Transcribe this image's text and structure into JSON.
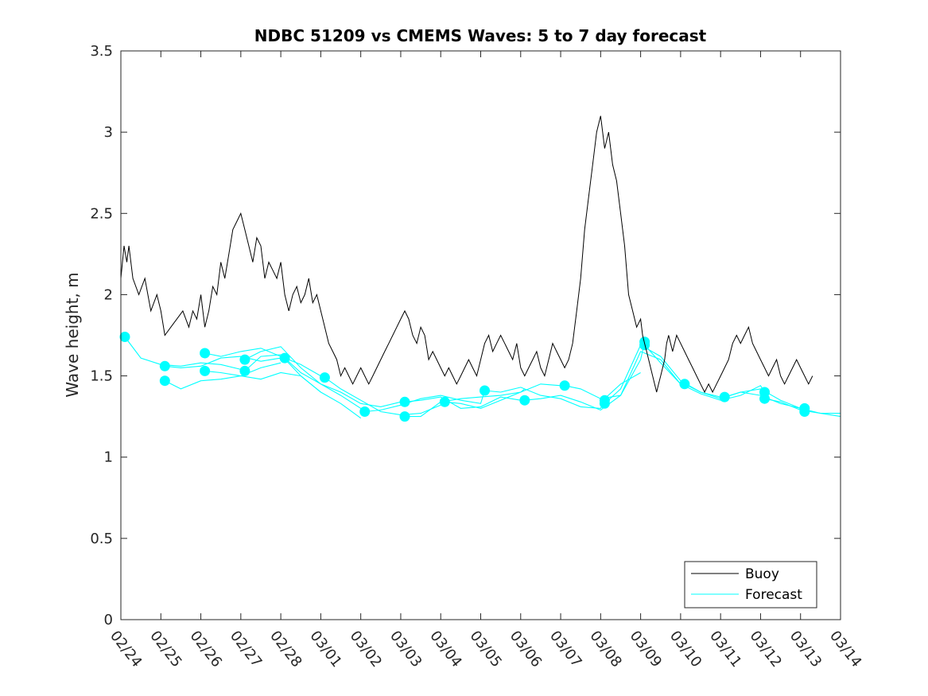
{
  "chart_data": {
    "type": "line",
    "title": "NDBC 51209 vs CMEMS Waves: 5 to 7 day forecast",
    "xlabel": "",
    "ylabel": "Wave height, m",
    "xlim": [
      0,
      18
    ],
    "ylim": [
      0,
      3.5
    ],
    "x_ticks": [
      "02/24",
      "02/25",
      "02/26",
      "02/27",
      "02/28",
      "03/01",
      "03/02",
      "03/03",
      "03/04",
      "03/05",
      "03/06",
      "03/07",
      "03/08",
      "03/09",
      "03/10",
      "03/11",
      "03/12",
      "03/13",
      "03/14"
    ],
    "y_ticks": [
      0,
      0.5,
      1,
      1.5,
      2,
      2.5,
      3,
      3.5
    ],
    "y_tick_labels": [
      "0",
      "0.5",
      "1",
      "1.5",
      "2",
      "2.5",
      "3",
      "3.5"
    ],
    "legend": {
      "position": "bottom-right",
      "entries": [
        "Buoy",
        "Forecast"
      ]
    },
    "colors": {
      "buoy": "#000000",
      "forecast": "#00ffff"
    },
    "series": [
      {
        "name": "Buoy",
        "x": [
          0.0,
          0.08,
          0.15,
          0.2,
          0.3,
          0.45,
          0.6,
          0.75,
          0.9,
          1.0,
          1.1,
          1.25,
          1.4,
          1.55,
          1.7,
          1.8,
          1.9,
          2.0,
          2.1,
          2.2,
          2.3,
          2.4,
          2.5,
          2.6,
          2.7,
          2.8,
          2.9,
          3.0,
          3.1,
          3.2,
          3.3,
          3.4,
          3.5,
          3.6,
          3.7,
          3.8,
          3.9,
          4.0,
          4.1,
          4.2,
          4.3,
          4.4,
          4.5,
          4.6,
          4.7,
          4.8,
          4.9,
          5.0,
          5.1,
          5.2,
          5.3,
          5.4,
          5.5,
          5.6,
          5.7,
          5.8,
          5.9,
          6.0,
          6.1,
          6.2,
          6.3,
          6.4,
          6.5,
          6.6,
          6.7,
          6.8,
          6.9,
          7.0,
          7.1,
          7.2,
          7.3,
          7.4,
          7.5,
          7.6,
          7.7,
          7.8,
          7.9,
          8.0,
          8.1,
          8.2,
          8.3,
          8.4,
          8.5,
          8.6,
          8.7,
          8.8,
          8.9,
          9.0,
          9.1,
          9.2,
          9.3,
          9.4,
          9.5,
          9.6,
          9.7,
          9.8,
          9.9,
          10.0,
          10.1,
          10.2,
          10.3,
          10.4,
          10.5,
          10.6,
          10.7,
          10.8,
          10.9,
          11.0,
          11.1,
          11.2,
          11.3,
          11.4,
          11.5,
          11.6,
          11.7,
          11.8,
          11.9,
          12.0,
          12.1,
          12.2,
          12.3,
          12.4,
          12.5,
          12.6,
          12.7,
          12.8,
          12.9,
          13.0,
          13.05,
          13.1,
          13.15,
          13.2,
          13.25,
          13.3,
          13.35,
          13.4,
          13.45,
          13.5,
          13.55,
          13.6,
          13.65,
          13.7,
          13.75,
          13.8,
          13.85,
          13.9,
          14.0,
          14.1,
          14.2,
          14.3,
          14.4,
          14.5,
          14.6,
          14.7,
          14.8,
          14.9,
          15.0,
          15.1,
          15.2,
          15.3,
          15.4,
          15.5,
          15.6,
          15.7,
          15.8,
          15.9,
          16.0,
          16.1,
          16.2,
          16.3,
          16.4,
          16.5,
          16.6,
          16.7,
          16.8,
          16.9,
          17.0,
          17.1,
          17.2,
          17.3
        ],
        "values": [
          2.1,
          2.3,
          2.2,
          2.3,
          2.1,
          2.0,
          2.1,
          1.9,
          2.0,
          1.9,
          1.75,
          1.8,
          1.85,
          1.9,
          1.8,
          1.9,
          1.85,
          2.0,
          1.8,
          1.9,
          2.05,
          2.0,
          2.2,
          2.1,
          2.25,
          2.4,
          2.45,
          2.5,
          2.4,
          2.3,
          2.2,
          2.35,
          2.3,
          2.1,
          2.2,
          2.15,
          2.1,
          2.2,
          2.0,
          1.9,
          2.0,
          2.05,
          1.95,
          2.0,
          2.1,
          1.95,
          2.0,
          1.9,
          1.8,
          1.7,
          1.65,
          1.6,
          1.5,
          1.55,
          1.5,
          1.45,
          1.5,
          1.55,
          1.5,
          1.45,
          1.5,
          1.55,
          1.6,
          1.65,
          1.7,
          1.75,
          1.8,
          1.85,
          1.9,
          1.85,
          1.75,
          1.7,
          1.8,
          1.75,
          1.6,
          1.65,
          1.6,
          1.55,
          1.5,
          1.55,
          1.5,
          1.45,
          1.5,
          1.55,
          1.6,
          1.55,
          1.5,
          1.6,
          1.7,
          1.75,
          1.65,
          1.7,
          1.75,
          1.7,
          1.65,
          1.6,
          1.7,
          1.55,
          1.5,
          1.55,
          1.6,
          1.65,
          1.55,
          1.5,
          1.6,
          1.7,
          1.65,
          1.6,
          1.55,
          1.6,
          1.7,
          1.9,
          2.1,
          2.4,
          2.6,
          2.8,
          3.0,
          3.1,
          2.9,
          3.0,
          2.8,
          2.7,
          2.5,
          2.3,
          2.0,
          1.9,
          1.8,
          1.85,
          1.75,
          1.7,
          1.65,
          1.6,
          1.55,
          1.5,
          1.45,
          1.4,
          1.45,
          1.5,
          1.55,
          1.6,
          1.7,
          1.75,
          1.7,
          1.65,
          1.7,
          1.75,
          1.7,
          1.65,
          1.6,
          1.55,
          1.5,
          1.45,
          1.4,
          1.45,
          1.4,
          1.45,
          1.5,
          1.55,
          1.6,
          1.7,
          1.75,
          1.7,
          1.75,
          1.8,
          1.7,
          1.65,
          1.6,
          1.55,
          1.5,
          1.55,
          1.6,
          1.5,
          1.45,
          1.5,
          1.55,
          1.6,
          1.55,
          1.5,
          1.45,
          1.5
        ]
      },
      {
        "name": "Forecast",
        "segments": [
          {
            "x": [
              0.1,
              0.5,
              1.0,
              1.5,
              2.0,
              2.5,
              3.0,
              3.1
            ],
            "values": [
              1.74,
              1.61,
              1.57,
              1.56,
              1.58,
              1.57,
              1.54,
              1.53
            ]
          },
          {
            "x": [
              1.1,
              1.5,
              2.0,
              2.5,
              3.0,
              3.5,
              4.0,
              4.1
            ],
            "values": [
              1.56,
              1.55,
              1.56,
              1.61,
              1.62,
              1.59,
              1.61,
              1.62
            ]
          },
          {
            "x": [
              1.1,
              1.5,
              2.0,
              2.5,
              3.0,
              3.5,
              4.0
            ],
            "values": [
              1.47,
              1.42,
              1.47,
              1.48,
              1.5,
              1.55,
              1.58
            ]
          },
          {
            "x": [
              2.1,
              2.5,
              3.0,
              3.5,
              4.0,
              4.5,
              5.0,
              5.1
            ],
            "values": [
              1.64,
              1.62,
              1.65,
              1.67,
              1.62,
              1.57,
              1.5,
              1.49
            ]
          },
          {
            "x": [
              2.1,
              2.5,
              3.0,
              3.5,
              4.0,
              4.5,
              5.0
            ],
            "values": [
              1.53,
              1.52,
              1.5,
              1.48,
              1.52,
              1.5,
              1.4
            ]
          },
          {
            "x": [
              3.1,
              3.5,
              4.0,
              4.5,
              5.0,
              5.5,
              6.0,
              6.1
            ],
            "values": [
              1.6,
              1.65,
              1.68,
              1.55,
              1.45,
              1.38,
              1.3,
              1.28
            ]
          },
          {
            "x": [
              3.1,
              3.5,
              4.0,
              4.5,
              5.0,
              5.5,
              6.0
            ],
            "values": [
              1.53,
              1.62,
              1.63,
              1.5,
              1.4,
              1.33,
              1.24
            ]
          },
          {
            "x": [
              4.1,
              4.5,
              5.0,
              5.5,
              6.0,
              6.5,
              7.0,
              7.1
            ],
            "values": [
              1.61,
              1.52,
              1.45,
              1.4,
              1.33,
              1.31,
              1.34,
              1.34
            ]
          },
          {
            "x": [
              5.1,
              5.5,
              6.0,
              6.5,
              7.0,
              7.5,
              8.0,
              8.1
            ],
            "values": [
              1.49,
              1.42,
              1.35,
              1.28,
              1.26,
              1.27,
              1.32,
              1.34
            ]
          },
          {
            "x": [
              6.1,
              6.5,
              7.0,
              7.5,
              8.0,
              8.5,
              9.0,
              9.1
            ],
            "values": [
              1.28,
              1.29,
              1.32,
              1.36,
              1.38,
              1.35,
              1.33,
              1.41
            ]
          },
          {
            "x": [
              7.1,
              7.5,
              8.0,
              8.5,
              9.0,
              9.5,
              10.0,
              10.1
            ],
            "values": [
              1.25,
              1.25,
              1.34,
              1.36,
              1.37,
              1.38,
              1.4,
              1.42
            ]
          },
          {
            "x": [
              7.1,
              7.5,
              8.0,
              8.5,
              9.0,
              9.5,
              10.0
            ],
            "values": [
              1.34,
              1.35,
              1.37,
              1.3,
              1.31,
              1.37,
              1.35
            ]
          },
          {
            "x": [
              8.1,
              8.5,
              9.0,
              9.5,
              10.0,
              10.5,
              11.0,
              11.1
            ],
            "values": [
              1.34,
              1.33,
              1.3,
              1.35,
              1.4,
              1.45,
              1.44,
              1.44
            ]
          },
          {
            "x": [
              9.1,
              9.5,
              10.0,
              10.5,
              11.0,
              11.5,
              12.0,
              12.1
            ],
            "values": [
              1.41,
              1.4,
              1.43,
              1.38,
              1.36,
              1.31,
              1.3,
              1.34
            ]
          },
          {
            "x": [
              10.1,
              10.5,
              11.0,
              11.5,
              12.0,
              12.5,
              13.0,
              13.1
            ],
            "values": [
              1.35,
              1.36,
              1.38,
              1.34,
              1.29,
              1.38,
              1.6,
              1.71
            ]
          },
          {
            "x": [
              11.1,
              11.5,
              12.0,
              12.5,
              13.0,
              13.5,
              14.0,
              14.1
            ],
            "values": [
              1.44,
              1.42,
              1.36,
              1.38,
              1.65,
              1.6,
              1.45,
              1.44
            ]
          },
          {
            "x": [
              12.1,
              12.5,
              13.0,
              13.5,
              14.0,
              14.5,
              15.0,
              15.1
            ],
            "values": [
              1.33,
              1.42,
              1.69,
              1.62,
              1.47,
              1.4,
              1.37,
              1.37
            ]
          },
          {
            "x": [
              12.1,
              12.5,
              13.0
            ],
            "values": [
              1.36,
              1.45,
              1.52
            ]
          },
          {
            "x": [
              13.1,
              13.5,
              14.0,
              14.5,
              15.0,
              15.5,
              16.0,
              16.1
            ],
            "values": [
              1.69,
              1.58,
              1.45,
              1.39,
              1.35,
              1.38,
              1.44,
              1.4
            ]
          },
          {
            "x": [
              14.1,
              14.5,
              15.0,
              15.5,
              16.0,
              16.5,
              17.0,
              17.1
            ],
            "values": [
              1.45,
              1.4,
              1.36,
              1.4,
              1.38,
              1.33,
              1.3,
              1.28
            ]
          },
          {
            "x": [
              15.1,
              15.5,
              16.0,
              16.5,
              17.0,
              17.5,
              18.0
            ],
            "values": [
              1.37,
              1.4,
              1.42,
              1.35,
              1.3,
              1.27,
              1.25
            ]
          },
          {
            "x": [
              16.1,
              16.5,
              17.0,
              17.5,
              18.0
            ],
            "values": [
              1.36,
              1.34,
              1.29,
              1.27,
              1.27
            ]
          }
        ],
        "markers": {
          "x": [
            0.1,
            1.1,
            1.1,
            2.1,
            2.1,
            3.1,
            3.1,
            4.1,
            5.1,
            6.1,
            7.1,
            7.1,
            8.1,
            9.1,
            10.1,
            11.1,
            12.1,
            12.1,
            13.1,
            13.1,
            14.1,
            15.1,
            16.1,
            16.1,
            17.1,
            17.1
          ],
          "values": [
            1.74,
            1.56,
            1.47,
            1.64,
            1.53,
            1.6,
            1.53,
            1.61,
            1.49,
            1.28,
            1.34,
            1.25,
            1.34,
            1.41,
            1.35,
            1.44,
            1.33,
            1.35,
            1.71,
            1.69,
            1.45,
            1.37,
            1.4,
            1.36,
            1.3,
            1.28
          ]
        }
      }
    ]
  }
}
